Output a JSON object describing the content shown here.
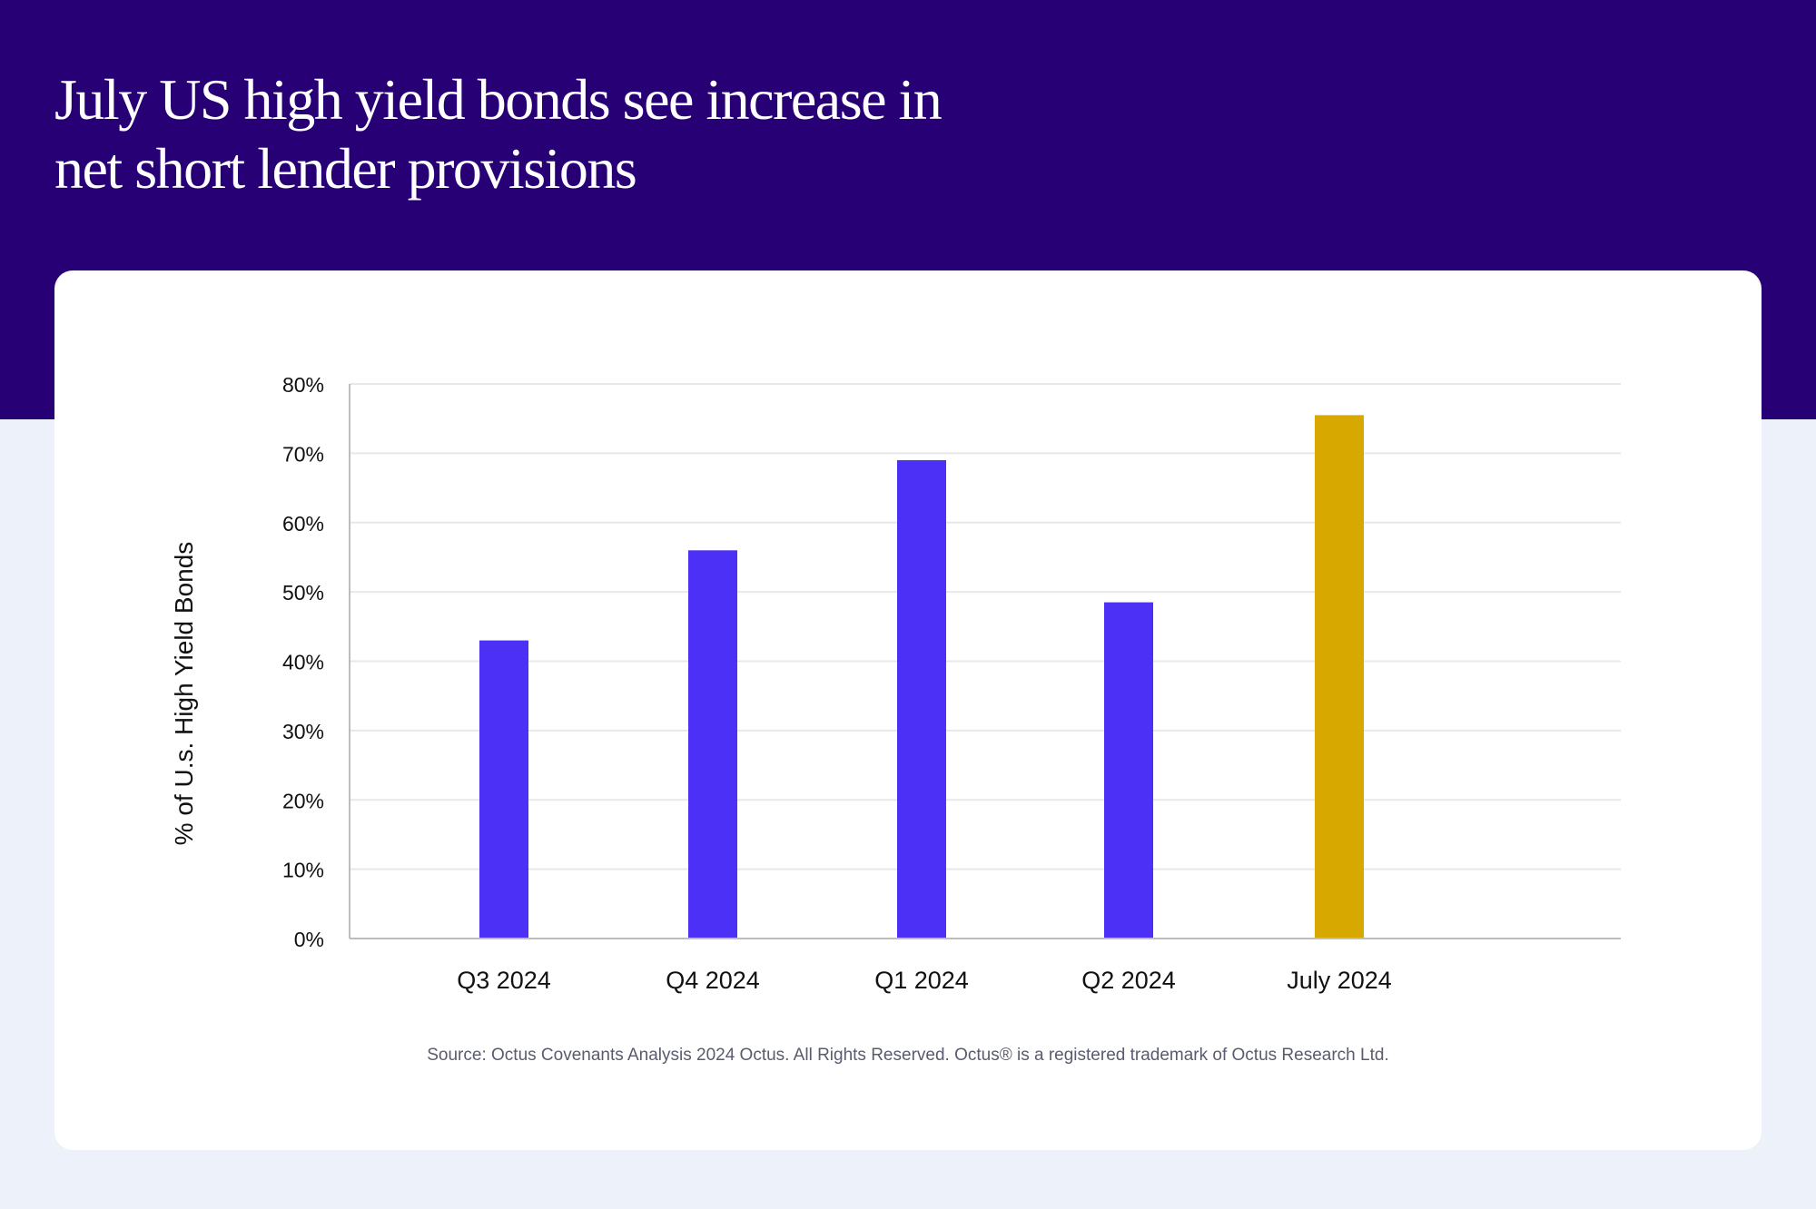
{
  "header": {
    "title_line1": "July US high yield bonds see increase in",
    "title_line2": "net short lender provisions"
  },
  "colors": {
    "header_bg": "#280076",
    "page_bg": "#edf1fa",
    "bar_default": "#4d30f5",
    "bar_highlight": "#d6a800",
    "grid": "#e8e8e8",
    "axis": "#bdbdbd"
  },
  "chart_data": {
    "type": "bar",
    "title": "July US high yield bonds see increase in net short lender provisions",
    "xlabel": "",
    "ylabel": "% of U.s. High Yield Bonds",
    "categories": [
      "Q3 2024",
      "Q4 2024",
      "Q1 2024",
      "Q2 2024",
      "July 2024"
    ],
    "values": [
      43,
      56,
      69,
      48.5,
      75.5
    ],
    "highlight_index": 4,
    "ylim": [
      0,
      80
    ],
    "yticks": [
      0,
      10,
      20,
      30,
      40,
      50,
      60,
      70,
      80
    ],
    "ytick_labels": [
      "0%",
      "10%",
      "20%",
      "30%",
      "40%",
      "50%",
      "60%",
      "70%",
      "80%"
    ],
    "grid": true,
    "legend": "none"
  },
  "footer": {
    "source": "Source: Octus Covenants Analysis 2024 Octus. All Rights Reserved. Octus® is a registered trademark of Octus Research Ltd."
  }
}
